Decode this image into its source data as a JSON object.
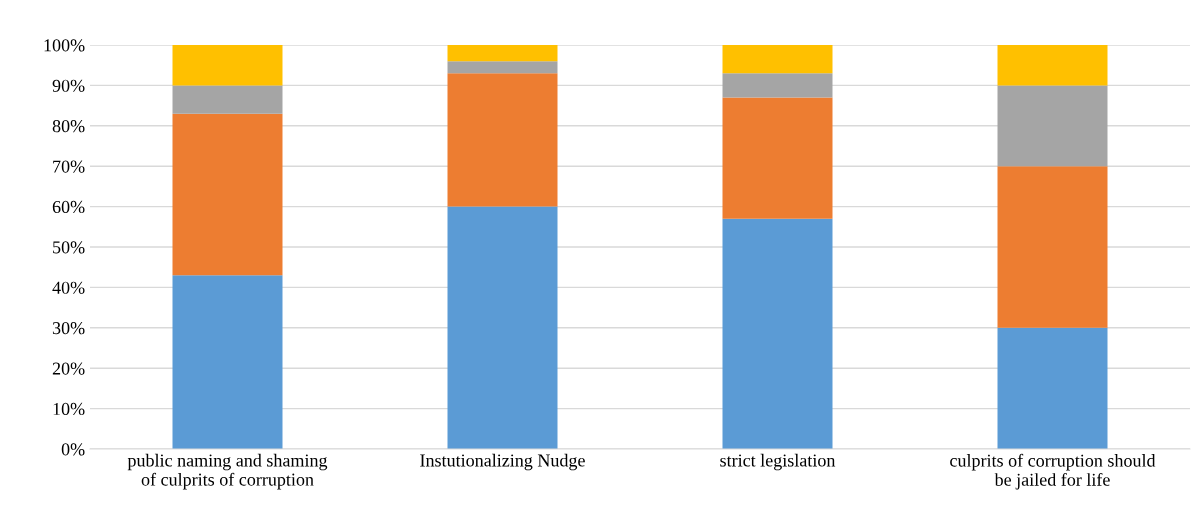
{
  "chart_data": {
    "type": "bar",
    "stacked": true,
    "categories": [
      "public naming and shaming\nof culprits of corruption",
      "Instutionalizing Nudge",
      "strict legislation",
      "culprits of corruption should\nbe jailed for life"
    ],
    "series": [
      {
        "color": "#5b9bd5",
        "values": [
          43,
          60,
          57,
          30
        ]
      },
      {
        "color": "#ed7d31",
        "values": [
          40,
          33,
          30,
          40
        ]
      },
      {
        "color": "#a5a5a5",
        "values": [
          7,
          3,
          6,
          20
        ]
      },
      {
        "color": "#ffc000",
        "values": [
          10,
          4,
          7,
          10
        ]
      }
    ],
    "ylim": [
      0,
      100
    ],
    "yticks": [
      {
        "value": 0,
        "label": "0%"
      },
      {
        "value": 10,
        "label": "10%"
      },
      {
        "value": 20,
        "label": "20%"
      },
      {
        "value": 30,
        "label": "30%"
      },
      {
        "value": 40,
        "label": "40%"
      },
      {
        "value": 50,
        "label": "50%"
      },
      {
        "value": 60,
        "label": "60%"
      },
      {
        "value": 70,
        "label": "70%"
      },
      {
        "value": 80,
        "label": "80%"
      },
      {
        "value": 90,
        "label": "90%"
      },
      {
        "value": 100,
        "label": "100%"
      }
    ],
    "grid": "y"
  }
}
